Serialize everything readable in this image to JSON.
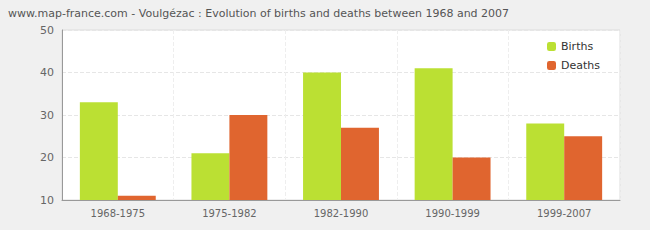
{
  "chart_data": {
    "type": "bar",
    "title": "www.map-france.com - Voulgézac : Evolution of births and deaths between 1968 and 2007",
    "categories": [
      "1968-1975",
      "1975-1982",
      "1982-1990",
      "1990-1999",
      "1999-2007"
    ],
    "series": [
      {
        "name": "Births",
        "color": "#bbe033",
        "values": [
          33,
          21,
          40,
          41,
          28
        ]
      },
      {
        "name": "Deaths",
        "color": "#e0652f",
        "values": [
          11,
          30,
          27,
          20,
          25
        ]
      }
    ],
    "ylim": [
      10,
      50
    ],
    "yticks": [
      10,
      20,
      30,
      40,
      50
    ],
    "grid": true,
    "legend": "top-right"
  }
}
